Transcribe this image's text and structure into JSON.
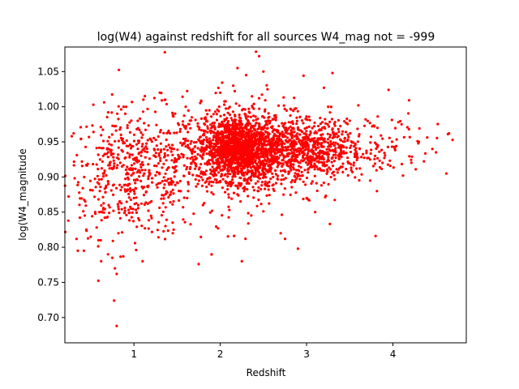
{
  "chart_data": {
    "type": "scatter",
    "title": "log(W4) against redshift for all sources W4_mag not = -999",
    "xlabel": "Redshift",
    "ylabel": "log(W4_magnitude",
    "xlim": [
      0.2,
      4.85
    ],
    "ylim": [
      0.664,
      1.085
    ],
    "xticks": [
      1,
      2,
      3,
      4
    ],
    "yticks": [
      0.7,
      0.75,
      0.8,
      0.85,
      0.9,
      0.95,
      1.0,
      1.05
    ],
    "xtick_labels": [
      "1",
      "2",
      "3",
      "4"
    ],
    "ytick_labels": [
      "0.70",
      "0.75",
      "0.80",
      "0.85",
      "0.90",
      "0.95",
      "1.00",
      "1.05"
    ],
    "grid": false,
    "marker_color": "#ff0000",
    "series": [
      {
        "points_note": "",
        "x": [
          0.35,
          0.42,
          0.45,
          0.5,
          0.55,
          0.6,
          0.62,
          0.65,
          0.7,
          0.72,
          0.75,
          0.78,
          0.8,
          0.82,
          0.85,
          0.88,
          0.9,
          0.95,
          1.0,
          1.05,
          1.1,
          1.12,
          1.3,
          1.45,
          1.6,
          1.75,
          1.8,
          1.9,
          2.0,
          2.15,
          2.2,
          2.25,
          2.3,
          2.35,
          2.45,
          2.5,
          2.55,
          2.7,
          2.75,
          2.9,
          3.0,
          3.1,
          3.2,
          3.25,
          3.3,
          3.5,
          3.6,
          3.8,
          3.95,
          4.1,
          4.3,
          4.5,
          4.62,
          4.65,
          0.8
        ],
        "y": [
          0.795,
          0.795,
          0.825,
          0.815,
          0.85,
          0.85,
          0.78,
          0.905,
          0.79,
          0.92,
          0.785,
          0.77,
          0.762,
          0.82,
          0.96,
          1.0,
          0.99,
          0.89,
          0.87,
          0.86,
          0.78,
          0.905,
          1.02,
          0.82,
          1.0,
          0.776,
          0.86,
          0.79,
          1.02,
          1.03,
          1.055,
          0.78,
          1.045,
          0.92,
          1.072,
          1.05,
          0.98,
          0.82,
          0.812,
          0.798,
          0.87,
          0.85,
          1.027,
          1.0,
          1.048,
          0.98,
          1.002,
          0.816,
          1.024,
          0.975,
          0.95,
          0.935,
          0.905,
          0.962,
          0.688
        ]
      }
    ],
    "clusters": [
      {
        "x_center": 1.0,
        "y_center": 0.905,
        "x_spread": 0.4,
        "y_spread": 0.045,
        "count": 550
      },
      {
        "x_center": 2.2,
        "y_center": 0.94,
        "x_spread": 0.22,
        "y_spread": 0.022,
        "count": 1300
      },
      {
        "x_center": 2.25,
        "y_center": 0.935,
        "x_spread": 0.45,
        "y_spread": 0.04,
        "count": 600
      },
      {
        "x_center": 3.0,
        "y_center": 0.94,
        "x_spread": 0.35,
        "y_spread": 0.022,
        "count": 700
      },
      {
        "x_center": 3.9,
        "y_center": 0.94,
        "x_spread": 0.35,
        "y_spread": 0.025,
        "count": 80
      }
    ]
  }
}
